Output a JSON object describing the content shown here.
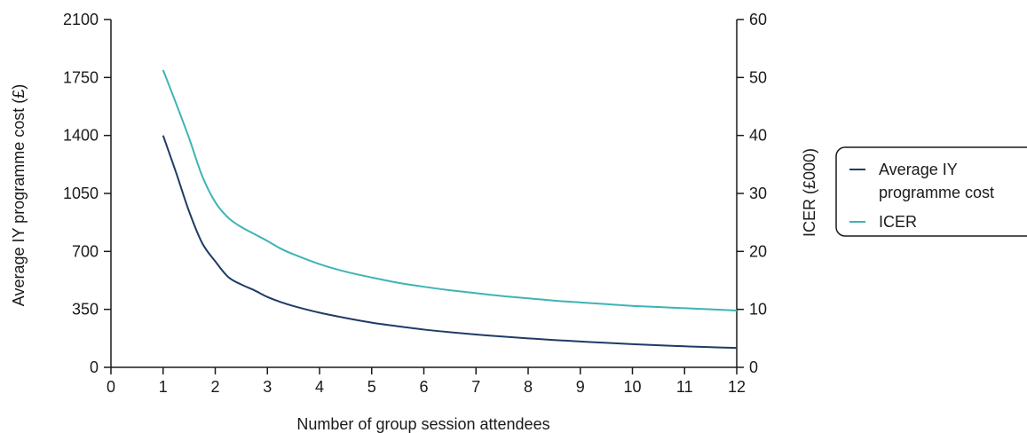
{
  "chart_data": {
    "type": "line",
    "xlabel": "Number of group session attendees",
    "ylabel": "Average IY programme cost (£)",
    "y2label": "ICER (£000)",
    "xlim": [
      0,
      12
    ],
    "ylim": [
      0,
      2100
    ],
    "y2lim": [
      0,
      60
    ],
    "xticks": [
      0,
      1,
      2,
      3,
      4,
      5,
      6,
      7,
      8,
      9,
      10,
      11,
      12
    ],
    "yticks": [
      0,
      350,
      700,
      1050,
      1400,
      1750,
      2100
    ],
    "y2ticks": [
      0,
      10,
      20,
      30,
      40,
      50,
      60
    ],
    "grid": false,
    "legend_position": "right",
    "series": [
      {
        "name": "Average IY programme cost",
        "axis": "left",
        "color": "#1f3b66",
        "x": [
          1,
          1.25,
          1.5,
          1.75,
          2,
          2.25,
          2.5,
          2.75,
          3,
          3.25,
          3.5,
          4,
          4.5,
          5,
          5.5,
          6,
          6.5,
          7,
          7.5,
          8,
          8.5,
          9,
          9.5,
          10,
          10.5,
          11,
          11.5,
          12
        ],
        "y": [
          1400,
          1175,
          940,
          750,
          640,
          545,
          500,
          465,
          425,
          395,
          370,
          330,
          298,
          270,
          248,
          228,
          212,
          198,
          186,
          175,
          165,
          156,
          148,
          140,
          133,
          127,
          122,
          117
        ]
      },
      {
        "name": "ICER",
        "axis": "right",
        "color": "#3fb3b5",
        "x": [
          1,
          1.25,
          1.5,
          1.75,
          2,
          2.25,
          2.5,
          2.75,
          3,
          3.25,
          3.5,
          4,
          4.5,
          5,
          5.5,
          6,
          6.5,
          7,
          7.5,
          8,
          8.5,
          9,
          9.5,
          10,
          10.5,
          11,
          11.5,
          12
        ],
        "y": [
          51.3,
          45.5,
          39.5,
          33.0,
          28.5,
          25.8,
          24.2,
          23.0,
          21.8,
          20.5,
          19.5,
          17.8,
          16.5,
          15.5,
          14.6,
          13.9,
          13.3,
          12.8,
          12.3,
          11.9,
          11.5,
          11.2,
          10.9,
          10.6,
          10.4,
          10.2,
          10.0,
          9.8
        ]
      }
    ]
  }
}
